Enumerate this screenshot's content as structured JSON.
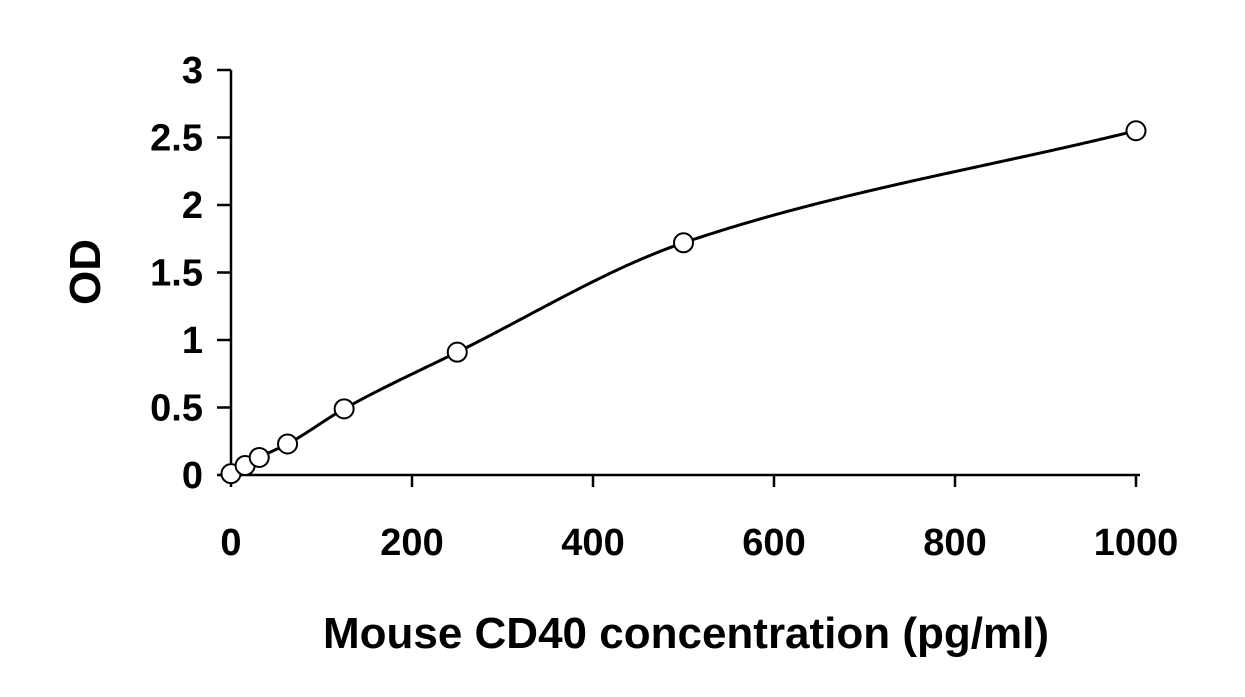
{
  "chart_data": {
    "type": "scatter",
    "title": "",
    "xlabel": "Mouse CD40 concentration (pg/ml)",
    "ylabel": "OD",
    "xlim": [
      0,
      1000
    ],
    "ylim": [
      0,
      3
    ],
    "x_ticks": [
      0,
      200,
      400,
      600,
      800,
      1000
    ],
    "y_ticks": [
      0,
      0.5,
      1,
      1.5,
      2,
      2.5,
      3
    ],
    "x_tick_labels": [
      "0",
      "200",
      "400",
      "600",
      "800",
      "1000"
    ],
    "y_tick_labels": [
      "0",
      "0.5",
      "1",
      "1.5",
      "2",
      "2.5",
      "3"
    ],
    "grid": false,
    "legend": "none",
    "series": [
      {
        "points": [
          {
            "x": 0,
            "y": 0.01
          },
          {
            "x": 15.6,
            "y": 0.07
          },
          {
            "x": 31.2,
            "y": 0.13
          },
          {
            "x": 62.5,
            "y": 0.23
          },
          {
            "x": 125,
            "y": 0.49
          },
          {
            "x": 250,
            "y": 0.91
          },
          {
            "x": 500,
            "y": 1.72
          },
          {
            "x": 1000,
            "y": 2.55
          }
        ],
        "marker": "open-circle",
        "fit_line": "smooth-curve"
      }
    ],
    "colors": {
      "axis": "#000000",
      "curve": "#000000",
      "marker_stroke": "#000000",
      "marker_fill": "#ffffff"
    }
  }
}
